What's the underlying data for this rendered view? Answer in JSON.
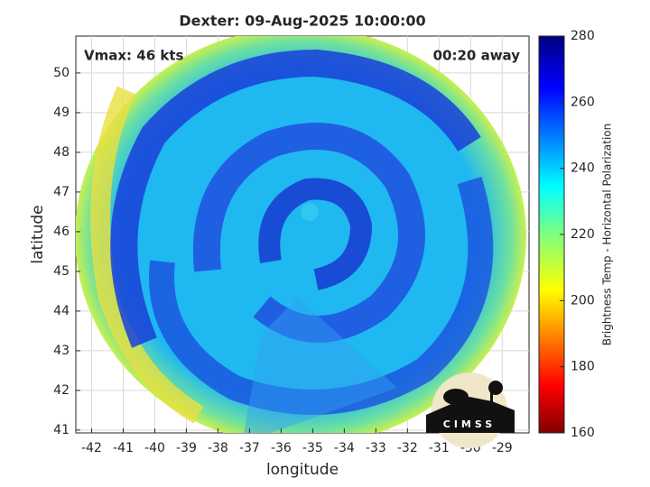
{
  "plot": {
    "title": "Dexter: 09-Aug-2025 10:00:00",
    "annotations": {
      "vmax": "Vmax: 46 kts",
      "time_away": "00:20 away"
    },
    "xlabel": "longitude",
    "ylabel": "latitude",
    "xlim": [
      -42.5,
      -28.15
    ],
    "ylim": [
      40.93,
      50.93
    ],
    "xticks": [
      -42,
      -41,
      -40,
      -39,
      -38,
      -37,
      -36,
      -35,
      -34,
      -33,
      -32,
      -31,
      -30,
      -29
    ],
    "yticks": [
      41,
      42,
      43,
      44,
      45,
      46,
      47,
      48,
      49,
      50
    ],
    "colorbar": {
      "label": "Brightness Temp - Horizontal Polarization",
      "lim": [
        160,
        280
      ],
      "ticks": [
        160,
        180,
        200,
        220,
        240,
        260,
        280
      ]
    },
    "logo": "CIMSS"
  }
}
